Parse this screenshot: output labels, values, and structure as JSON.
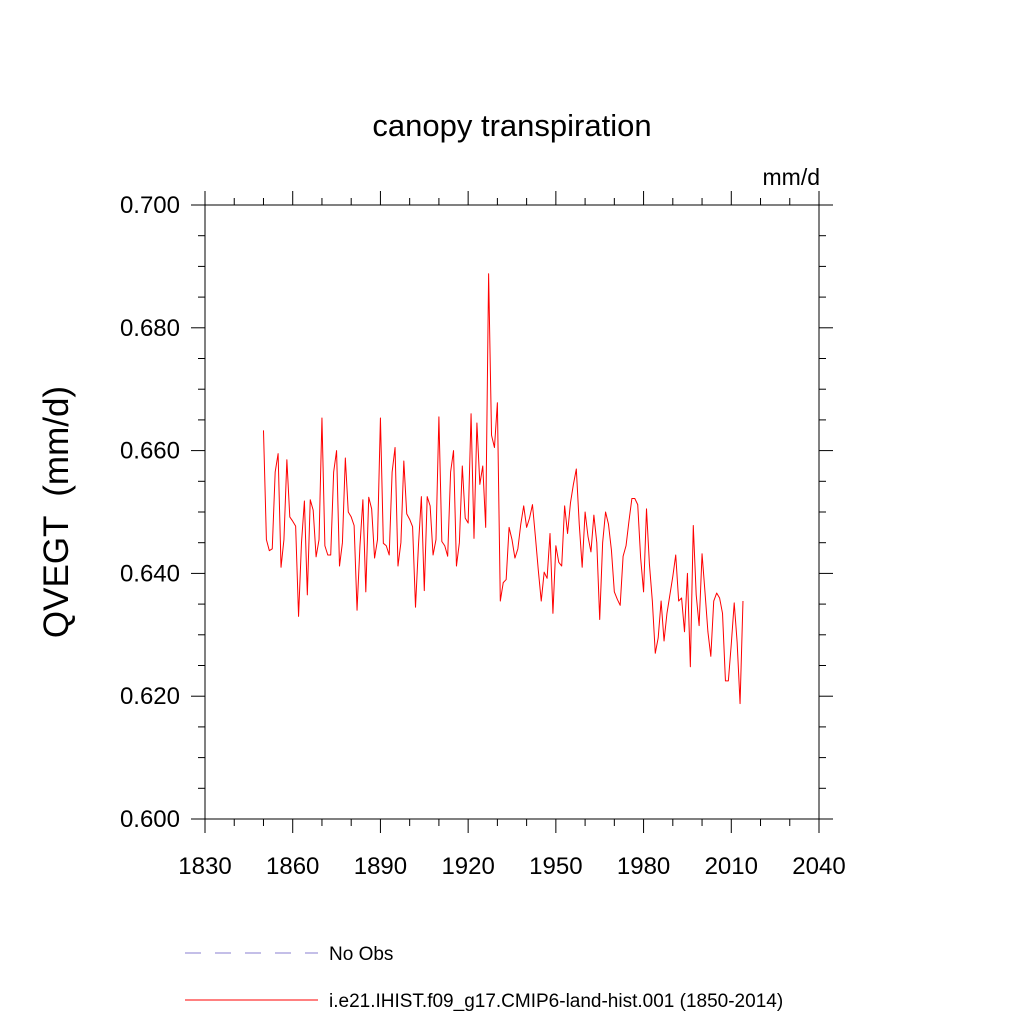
{
  "chart_data": {
    "type": "line",
    "title": "canopy transpiration",
    "units": "mm/d",
    "ylabel": "QVEGT  (mm/d)",
    "xlabel": "",
    "xlim": [
      1830,
      2040
    ],
    "ylim": [
      0.6,
      0.7
    ],
    "xticks": [
      1830,
      1860,
      1890,
      1920,
      1950,
      1980,
      2010,
      2040
    ],
    "xtick_labels": [
      "1830",
      "1860",
      "1890",
      "1920",
      "1950",
      "1980",
      "2010",
      "2040"
    ],
    "yticks": [
      0.6,
      0.62,
      0.64,
      0.66,
      0.68,
      0.7
    ],
    "ytick_labels": [
      "0.600",
      "0.620",
      "0.640",
      "0.660",
      "0.680",
      "0.700"
    ],
    "grid": false,
    "legend_placement": "bottom",
    "legend": [
      {
        "label": "No Obs",
        "style": "dashed",
        "color": "#8a7fd0"
      },
      {
        "label": "i.e21.IHIST.f09_g17.CMIP6-land-hist.001 (1850-2014)",
        "style": "solid",
        "color": "#ff0000"
      }
    ],
    "series": [
      {
        "name": "i.e21.IHIST.f09_g17.CMIP6-land-hist.001 (1850-2014)",
        "color": "#ff0000",
        "x": [
          1850,
          1851,
          1852,
          1853,
          1854,
          1855,
          1856,
          1857,
          1858,
          1859,
          1860,
          1861,
          1862,
          1863,
          1864,
          1865,
          1866,
          1867,
          1868,
          1869,
          1870,
          1871,
          1872,
          1873,
          1874,
          1875,
          1876,
          1877,
          1878,
          1879,
          1880,
          1881,
          1882,
          1883,
          1884,
          1885,
          1886,
          1887,
          1888,
          1889,
          1890,
          1891,
          1892,
          1893,
          1894,
          1895,
          1896,
          1897,
          1898,
          1899,
          1900,
          1901,
          1902,
          1903,
          1904,
          1905,
          1906,
          1907,
          1908,
          1909,
          1910,
          1911,
          1912,
          1913,
          1914,
          1915,
          1916,
          1917,
          1918,
          1919,
          1920,
          1921,
          1922,
          1923,
          1924,
          1925,
          1926,
          1927,
          1928,
          1929,
          1930,
          1931,
          1932,
          1933,
          1934,
          1935,
          1936,
          1937,
          1938,
          1939,
          1940,
          1941,
          1942,
          1943,
          1944,
          1945,
          1946,
          1947,
          1948,
          1949,
          1950,
          1951,
          1952,
          1953,
          1954,
          1955,
          1956,
          1957,
          1958,
          1959,
          1960,
          1961,
          1962,
          1963,
          1964,
          1965,
          1966,
          1967,
          1968,
          1969,
          1970,
          1971,
          1972,
          1973,
          1974,
          1975,
          1976,
          1977,
          1978,
          1979,
          1980,
          1981,
          1982,
          1983,
          1984,
          1985,
          1986,
          1987,
          1988,
          1989,
          1990,
          1991,
          1992,
          1993,
          1994,
          1995,
          1996,
          1997,
          1998,
          1999,
          2000,
          2001,
          2002,
          2003,
          2004,
          2005,
          2006,
          2007,
          2008,
          2009,
          2010,
          2011,
          2012,
          2013,
          2014
        ],
        "values": [
          0.6633,
          0.6455,
          0.6437,
          0.644,
          0.6565,
          0.6595,
          0.641,
          0.6455,
          0.6585,
          0.6492,
          0.6485,
          0.6477,
          0.633,
          0.645,
          0.6518,
          0.6365,
          0.652,
          0.6503,
          0.6427,
          0.6455,
          0.6653,
          0.6445,
          0.643,
          0.643,
          0.6565,
          0.66,
          0.6412,
          0.645,
          0.6588,
          0.65,
          0.6492,
          0.6478,
          0.634,
          0.6445,
          0.652,
          0.637,
          0.6524,
          0.6505,
          0.6425,
          0.6455,
          0.6653,
          0.6449,
          0.6445,
          0.643,
          0.6565,
          0.6605,
          0.6412,
          0.645,
          0.6583,
          0.6497,
          0.6488,
          0.6476,
          0.6345,
          0.6445,
          0.6525,
          0.6372,
          0.6525,
          0.651,
          0.643,
          0.6455,
          0.6655,
          0.6452,
          0.6445,
          0.6428,
          0.6565,
          0.66,
          0.6412,
          0.645,
          0.6575,
          0.649,
          0.6482,
          0.666,
          0.6457,
          0.6645,
          0.6545,
          0.6575,
          0.6475,
          0.6888,
          0.6625,
          0.6605,
          0.6678,
          0.6355,
          0.6385,
          0.639,
          0.6475,
          0.6455,
          0.6425,
          0.644,
          0.648,
          0.651,
          0.6475,
          0.649,
          0.6512,
          0.646,
          0.6405,
          0.6355,
          0.6402,
          0.6392,
          0.6465,
          0.6335,
          0.6445,
          0.6418,
          0.6412,
          0.651,
          0.6465,
          0.6515,
          0.6545,
          0.657,
          0.648,
          0.641,
          0.65,
          0.646,
          0.6435,
          0.6495,
          0.645,
          0.6325,
          0.645,
          0.65,
          0.648,
          0.6438,
          0.637,
          0.6358,
          0.6348,
          0.6428,
          0.6445,
          0.6485,
          0.6522,
          0.6522,
          0.6512,
          0.6425,
          0.637,
          0.6505,
          0.6415,
          0.6355,
          0.627,
          0.6295,
          0.6355,
          0.629,
          0.6335,
          0.6365,
          0.6395,
          0.643,
          0.6355,
          0.636,
          0.6305,
          0.64,
          0.6248,
          0.6478,
          0.6365,
          0.6315,
          0.6432,
          0.637,
          0.6305,
          0.6265,
          0.6355,
          0.6368,
          0.636,
          0.6335,
          0.6225,
          0.6225,
          0.6285,
          0.6352,
          0.6288,
          0.6188,
          0.6355
        ]
      }
    ]
  }
}
